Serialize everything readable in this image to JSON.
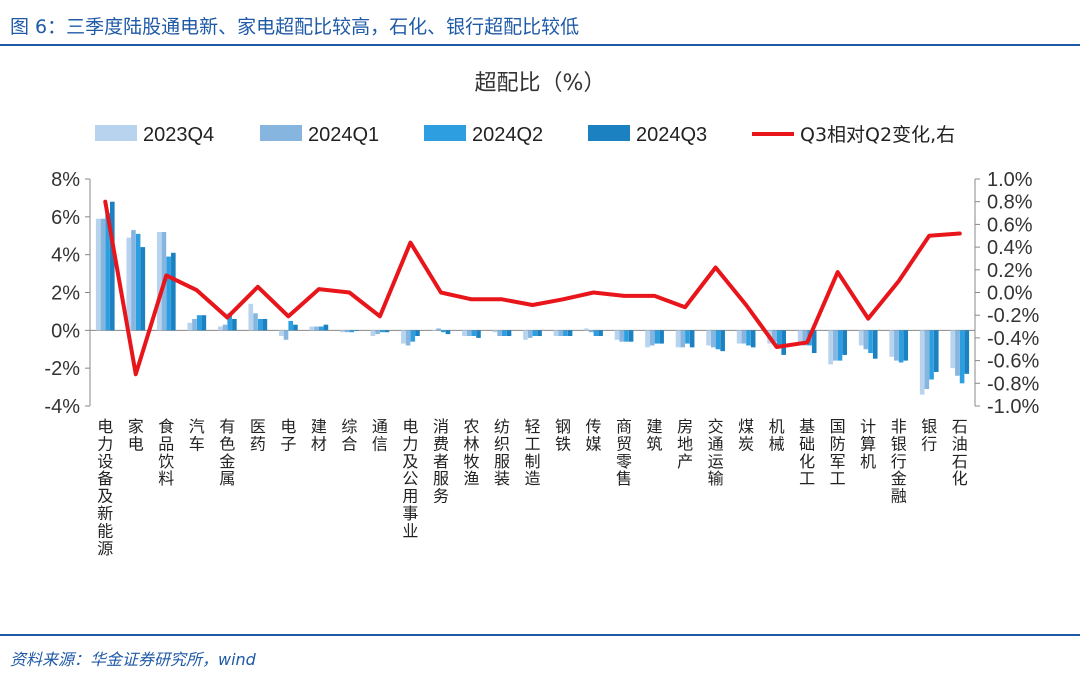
{
  "figure_title": "图 6：三季度陆股通电新、家电超配比较高，石化、银行超配比较低",
  "source": "资料来源：华金证券研究所，wind",
  "chart_data": {
    "type": "bar",
    "title": "超配比（%）",
    "categories": [
      "电力设备及新能源",
      "家电",
      "食品饮料",
      "汽车",
      "有色金属",
      "医药",
      "电子",
      "建材",
      "综合",
      "通信",
      "电力及公用事业",
      "消费者服务",
      "农林牧渔",
      "纺织服装",
      "轻工制造",
      "钢铁",
      "传媒",
      "商贸零售",
      "建筑",
      "房地产",
      "交通运输",
      "煤炭",
      "机械",
      "基础化工",
      "国防军工",
      "计算机",
      "非银行金融",
      "银行",
      "石油石化"
    ],
    "series": [
      {
        "name": "2023Q4",
        "type": "bar",
        "axis": "left",
        "color": "#b7d3ee",
        "values": [
          5.9,
          4.9,
          5.2,
          0.4,
          0.2,
          1.4,
          -0.3,
          0.2,
          -0.1,
          -0.3,
          -0.7,
          0.0,
          -0.3,
          -0.1,
          -0.5,
          -0.3,
          0.1,
          -0.5,
          -0.9,
          -0.9,
          -0.8,
          -0.7,
          -0.7,
          -0.7,
          -1.8,
          -0.8,
          -1.4,
          -3.4,
          -2.0
        ]
      },
      {
        "name": "2024Q1",
        "type": "bar",
        "axis": "left",
        "color": "#86b5e0",
        "values": [
          5.9,
          5.3,
          5.2,
          0.6,
          0.3,
          0.9,
          -0.5,
          0.2,
          -0.1,
          -0.2,
          -0.8,
          0.1,
          -0.3,
          -0.3,
          -0.4,
          -0.3,
          -0.1,
          -0.6,
          -0.8,
          -0.9,
          -0.9,
          -0.7,
          -0.6,
          -0.8,
          -1.6,
          -1.0,
          -1.6,
          -3.1,
          -2.4
        ]
      },
      {
        "name": "2024Q2",
        "type": "bar",
        "axis": "left",
        "color": "#2d9ee0",
        "values": [
          6.2,
          5.1,
          3.9,
          0.8,
          0.9,
          0.6,
          0.5,
          0.2,
          -0.1,
          -0.1,
          -0.6,
          -0.1,
          -0.3,
          -0.3,
          -0.3,
          -0.3,
          -0.3,
          -0.6,
          -0.7,
          -0.7,
          -1.0,
          -0.8,
          -0.9,
          -0.8,
          -1.6,
          -1.2,
          -1.7,
          -2.6,
          -2.8
        ]
      },
      {
        "name": "2024Q3",
        "type": "bar",
        "axis": "left",
        "color": "#1b81c0",
        "values": [
          6.8,
          4.4,
          4.1,
          0.8,
          0.6,
          0.6,
          0.3,
          0.3,
          0.0,
          -0.1,
          -0.3,
          -0.2,
          -0.4,
          -0.3,
          -0.3,
          -0.3,
          -0.3,
          -0.6,
          -0.7,
          -0.9,
          -1.1,
          -0.9,
          -1.3,
          -1.2,
          -1.3,
          -1.5,
          -1.6,
          -2.2,
          -2.3
        ]
      },
      {
        "name": "Q3相对Q2变化,右",
        "type": "line",
        "axis": "right",
        "color": "#e8151b",
        "values": [
          0.8,
          -0.72,
          0.15,
          0.02,
          -0.22,
          0.05,
          -0.21,
          0.03,
          0.0,
          -0.21,
          0.44,
          0.0,
          -0.06,
          -0.06,
          -0.11,
          -0.06,
          0.0,
          -0.03,
          -0.03,
          -0.13,
          0.22,
          -0.11,
          -0.48,
          -0.44,
          0.18,
          -0.23,
          0.1,
          0.5,
          0.52
        ]
      }
    ],
    "left_axis": {
      "ylim": [
        -4,
        8
      ],
      "ticks": [
        8,
        6,
        4,
        2,
        0,
        -2,
        -4
      ],
      "tick_labels": [
        "8%",
        "6%",
        "4%",
        "2%",
        "0%",
        "-2%",
        "-4%"
      ]
    },
    "right_axis": {
      "ylim": [
        -1.0,
        1.0
      ],
      "ticks": [
        1.0,
        0.8,
        0.6,
        0.4,
        0.2,
        0.0,
        -0.2,
        -0.4,
        -0.6,
        -0.8,
        -1.0
      ],
      "tick_labels": [
        "1.0%",
        "0.8%",
        "0.6%",
        "0.4%",
        "0.2%",
        "0.0%",
        "-0.2%",
        "-0.4%",
        "-0.6%",
        "-0.8%",
        "-1.0%"
      ]
    },
    "legend": {
      "position": "top",
      "labels": [
        "2023Q4",
        "2024Q1",
        "2024Q2",
        "2024Q3",
        "Q3相对Q2变化,右"
      ]
    },
    "grid": false
  }
}
